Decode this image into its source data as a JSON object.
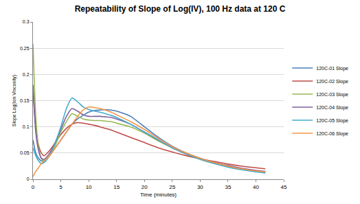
{
  "chart_data": {
    "type": "line",
    "title": "Repeatability of Slope of Log(IV), 100 Hz data at 120 C",
    "x_label": "Time (minutes)",
    "y_label": "Slope Log(Ion Viscosity)",
    "x": [
      0,
      0.5,
      1,
      1.5,
      2,
      3,
      4,
      5,
      6,
      7,
      8,
      9,
      10,
      11,
      12,
      13,
      14,
      15,
      17.5,
      20,
      22.5,
      25,
      27.5,
      30,
      32.5,
      35,
      37.5,
      40,
      41.7
    ],
    "series": [
      {
        "name": "120C-01 Slope",
        "color": "#4A7EBB",
        "values": [
          0.075,
          0.05,
          0.04,
          0.035,
          0.035,
          0.045,
          0.06,
          0.075,
          0.09,
          0.105,
          0.115,
          0.122,
          0.128,
          0.131,
          0.132,
          0.133,
          0.132,
          0.13,
          0.12,
          0.1,
          0.08,
          0.063,
          0.05,
          0.04,
          0.032,
          0.025,
          0.02,
          0.016,
          0.014
        ]
      },
      {
        "name": "120C-02 Slope",
        "color": "#BE4B48",
        "values": [
          0.17,
          0.1,
          0.065,
          0.05,
          0.045,
          0.055,
          0.07,
          0.085,
          0.097,
          0.105,
          0.108,
          0.107,
          0.105,
          0.103,
          0.1,
          0.097,
          0.094,
          0.09,
          0.08,
          0.07,
          0.06,
          0.052,
          0.045,
          0.039,
          0.034,
          0.029,
          0.025,
          0.022,
          0.02
        ]
      },
      {
        "name": "120C-03 Slope",
        "color": "#98B954",
        "values": [
          0.258,
          0.12,
          0.06,
          0.04,
          0.035,
          0.045,
          0.065,
          0.09,
          0.11,
          0.125,
          0.12,
          0.115,
          0.113,
          0.112,
          0.112,
          0.111,
          0.11,
          0.107,
          0.1,
          0.088,
          0.073,
          0.06,
          0.048,
          0.038,
          0.03,
          0.024,
          0.019,
          0.015,
          0.013
        ]
      },
      {
        "name": "120C-04 Slope",
        "color": "#7D60A0",
        "values": [
          0.18,
          0.09,
          0.055,
          0.04,
          0.038,
          0.05,
          0.07,
          0.095,
          0.12,
          0.135,
          0.13,
          0.123,
          0.12,
          0.12,
          0.12,
          0.119,
          0.118,
          0.115,
          0.105,
          0.09,
          0.075,
          0.06,
          0.049,
          0.04,
          0.032,
          0.026,
          0.021,
          0.017,
          0.015
        ]
      },
      {
        "name": "120C-05 Slope",
        "color": "#46AACE",
        "values": [
          0.06,
          0.045,
          0.035,
          0.03,
          0.032,
          0.045,
          0.07,
          0.1,
          0.135,
          0.155,
          0.148,
          0.138,
          0.133,
          0.13,
          0.128,
          0.125,
          0.122,
          0.118,
          0.105,
          0.09,
          0.075,
          0.06,
          0.048,
          0.038,
          0.03,
          0.023,
          0.018,
          0.014,
          0.012
        ]
      },
      {
        "name": "120C-06 Slope",
        "color": "#F79646",
        "values": [
          0.005,
          0.015,
          0.022,
          0.03,
          0.035,
          0.045,
          0.06,
          0.075,
          0.09,
          0.105,
          0.12,
          0.132,
          0.138,
          0.137,
          0.135,
          0.132,
          0.128,
          0.123,
          0.11,
          0.095,
          0.078,
          0.062,
          0.05,
          0.04,
          0.032,
          0.025,
          0.02,
          0.016,
          0.014
        ]
      }
    ],
    "xlim": [
      0,
      45
    ],
    "xticks": [
      0,
      5,
      10,
      15,
      20,
      25,
      30,
      35,
      40,
      45
    ],
    "ylim": [
      0,
      0.3
    ],
    "yticks": [
      0,
      0.05,
      0.1,
      0.15,
      0.2,
      0.25,
      0.3
    ],
    "grid": true,
    "legend": "right",
    "line_style": "solid"
  }
}
